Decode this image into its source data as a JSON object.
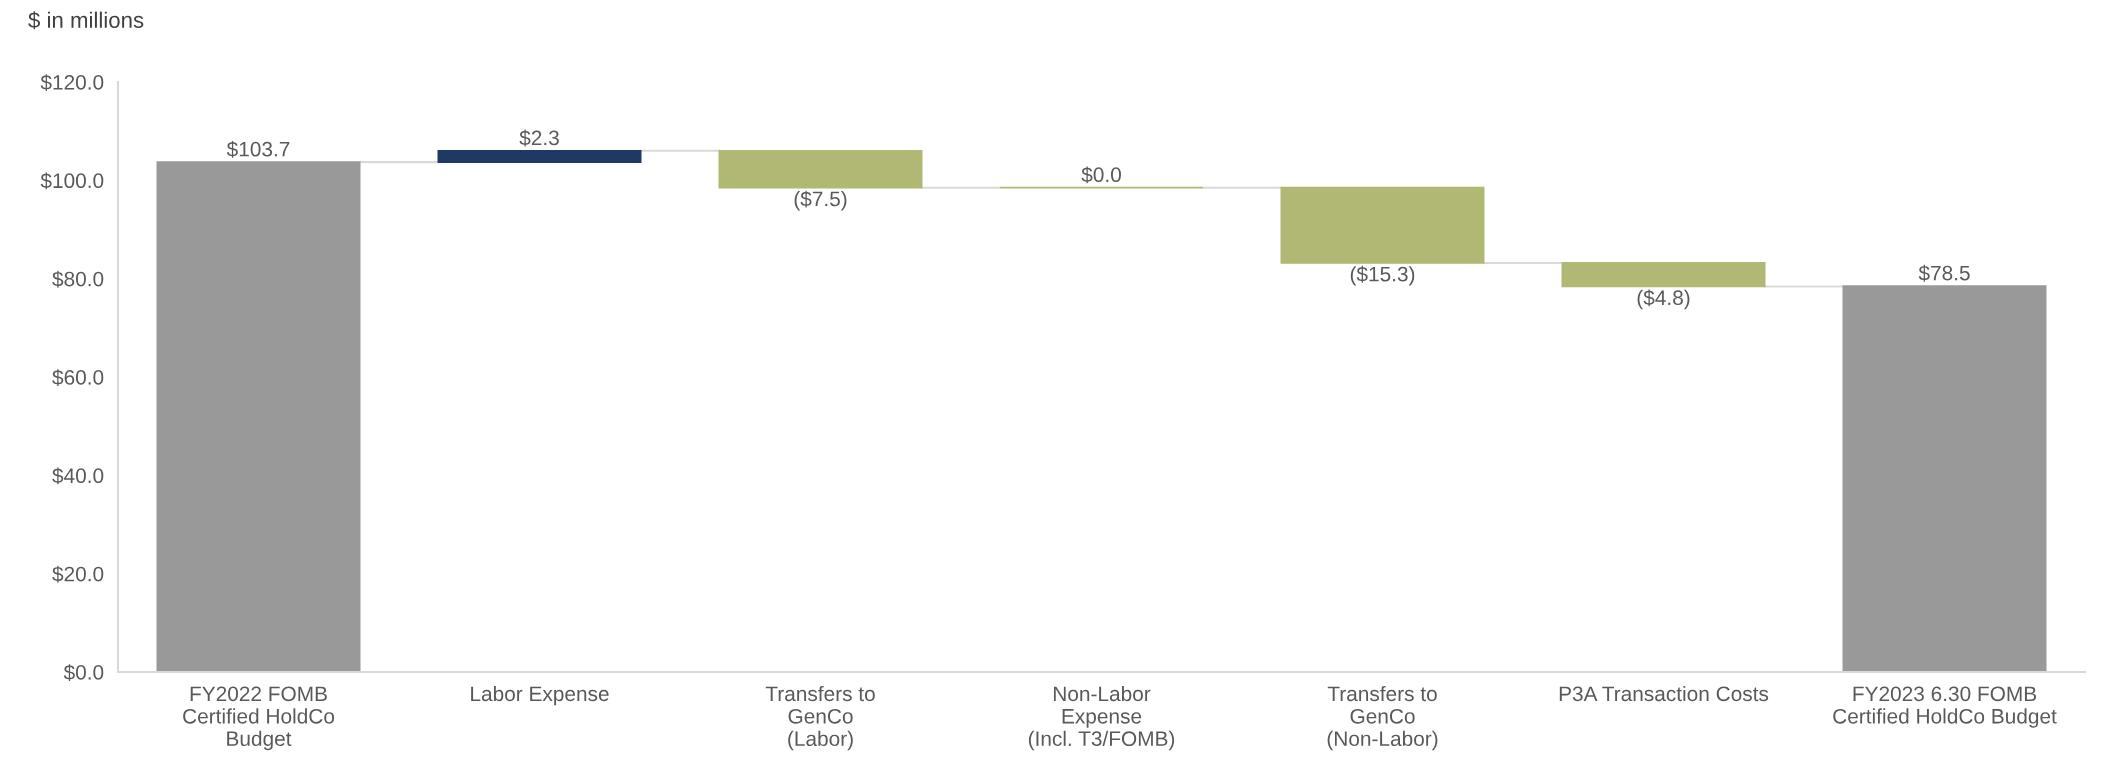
{
  "chart_data": {
    "type": "bar",
    "ylabel": "$ in millions",
    "categories": [
      "FY2022 FOMB\nCertified HoldCo\nBudget",
      "Labor Expense",
      "Transfers to\nGenCo\n(Labor)",
      "Non-Labor\nExpense\n(Incl. T3/FOMB)",
      "Transfers to\nGenCo\n(Non-Labor)",
      "P3A Transaction Costs",
      "FY2023 6.30 FOMB\nCertified HoldCo Budget"
    ],
    "values": [
      103.7,
      2.3,
      -7.5,
      0.0,
      -15.3,
      -4.8,
      78.5
    ],
    "base": [
      0,
      103.7,
      106.0,
      98.5,
      98.5,
      83.2,
      0
    ],
    "colors": [
      "#999999",
      "#1f3864",
      "#b0b874",
      "#b0b874",
      "#b0b874",
      "#b0b874",
      "#999999"
    ],
    "value_labels": [
      "$103.7",
      "$2.3",
      "($7.5)",
      "$0.0",
      "($15.3)",
      "($4.8)",
      "$78.5"
    ],
    "ylim": [
      0,
      120
    ],
    "yticks": [
      {
        "value": 0,
        "label": "$0.0"
      },
      {
        "value": 20,
        "label": "$20.0"
      },
      {
        "value": 40,
        "label": "$40.0"
      },
      {
        "value": 60,
        "label": "$60.0"
      },
      {
        "value": 80,
        "label": "$80.0"
      },
      {
        "value": 100,
        "label": "$100.0"
      },
      {
        "value": 120,
        "label": "$120.0"
      }
    ],
    "grid": false,
    "legend": false
  }
}
